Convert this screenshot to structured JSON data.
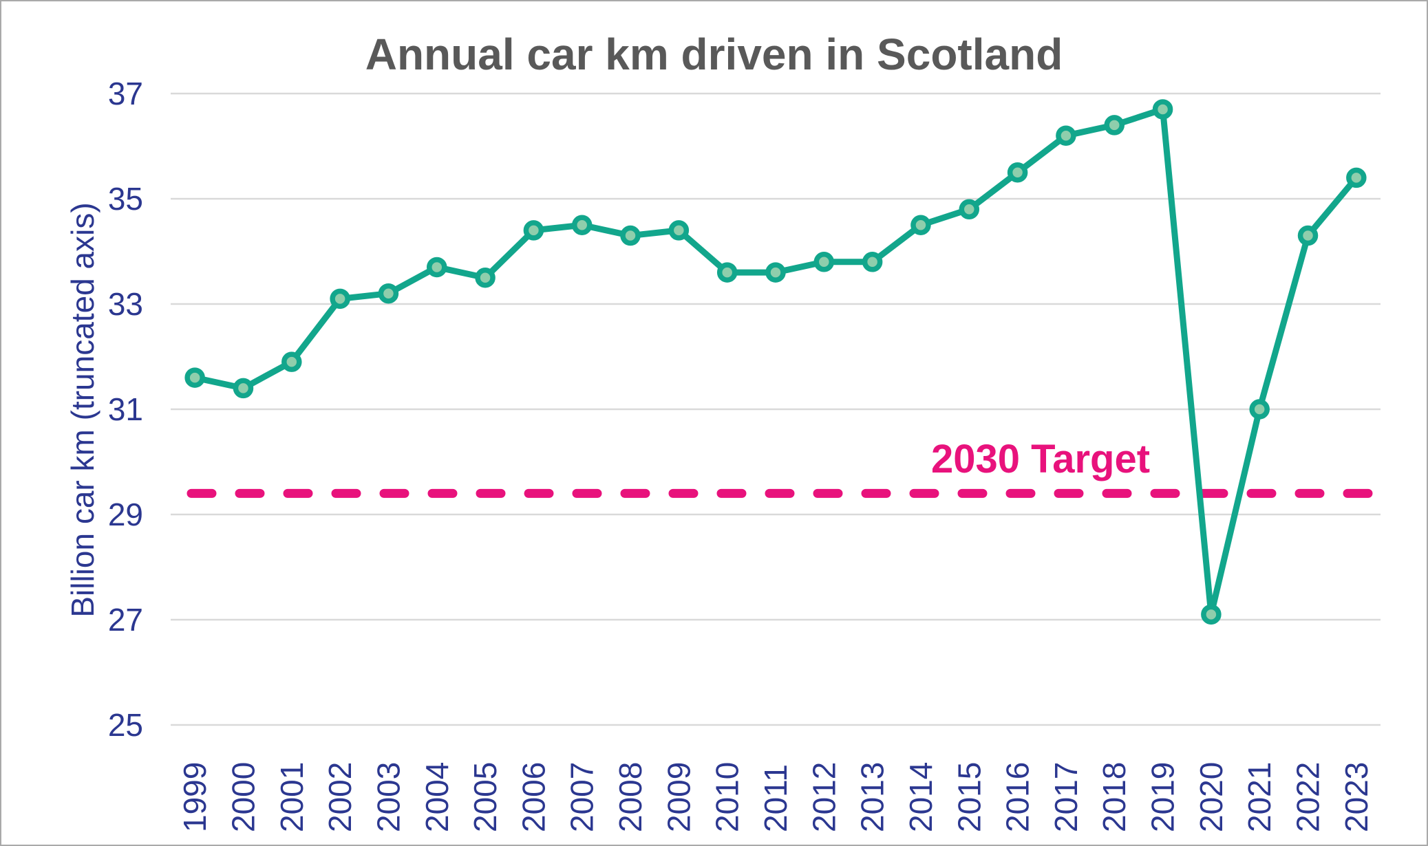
{
  "chart_data": {
    "type": "line",
    "title": "Annual car km driven in Scotland",
    "ylabel": "Billion car km (truncated axis)",
    "xlabel": "",
    "categories": [
      "1999",
      "2000",
      "2001",
      "2002",
      "2003",
      "2004",
      "2005",
      "2006",
      "2007",
      "2008",
      "2009",
      "2010",
      "2011",
      "2012",
      "2013",
      "2014",
      "2015",
      "2016",
      "2017",
      "2018",
      "2019",
      "2020",
      "2021",
      "2022",
      "2023"
    ],
    "series": [
      {
        "name": "Annual car km driven",
        "values": [
          31.6,
          31.4,
          31.9,
          33.1,
          33.2,
          33.7,
          33.5,
          34.4,
          34.5,
          34.3,
          34.4,
          33.6,
          33.6,
          33.8,
          33.8,
          34.5,
          34.8,
          35.5,
          36.2,
          36.4,
          36.7,
          27.1,
          31.0,
          34.3,
          35.4
        ]
      }
    ],
    "target_line": {
      "label": "2030 Target",
      "value": 29.4,
      "style": "dashed"
    },
    "ylim": [
      25,
      37
    ],
    "yticks": [
      37,
      35,
      33,
      31,
      29,
      27,
      25
    ],
    "grid": "horizontal",
    "legend": "none",
    "truncated_axis": true
  },
  "colors": {
    "line": "#12a68c",
    "marker_fill": "#8fceac",
    "target": "#e8127c",
    "axis_text": "#2b3790",
    "title_text": "#595959",
    "gridline": "#d9d9d9"
  }
}
